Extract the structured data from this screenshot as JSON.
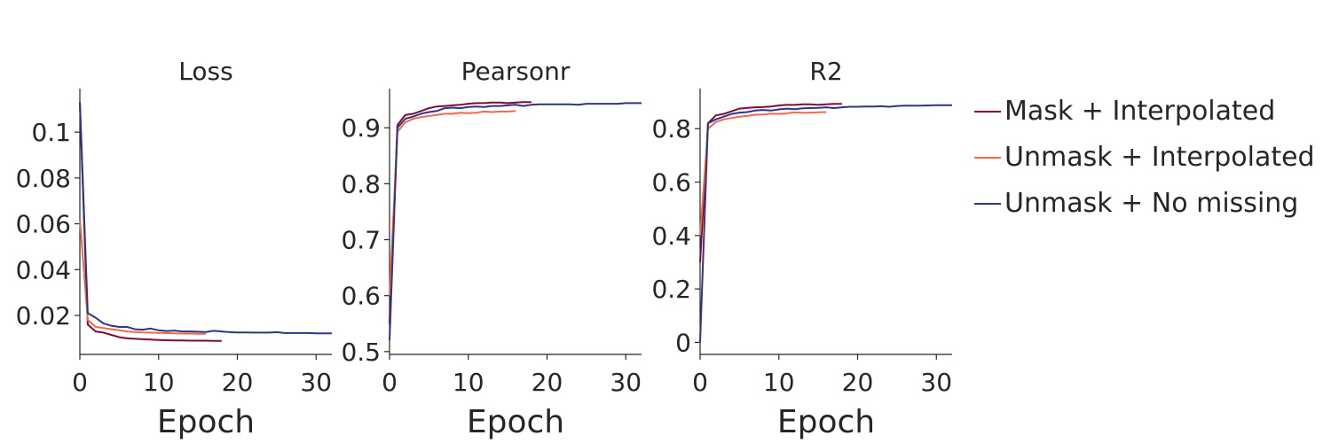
{
  "colors": {
    "Mask + Interpolated": "#7f0a35",
    "Unmask + Interpolated": "#ee6a45",
    "Unmask + No missing": "#2e3587",
    "axis": "#262626"
  },
  "legend": {
    "placement": "right",
    "items": [
      "Mask + Interpolated",
      "Unmask + Interpolated",
      "Unmask + No missing"
    ]
  },
  "chart_data": [
    {
      "type": "line",
      "title": "Loss",
      "xlabel": "Epoch",
      "ylabel": "",
      "xlim": [
        0,
        32
      ],
      "ylim": [
        0.003,
        0.119
      ],
      "xticks": [
        0,
        10,
        20,
        30
      ],
      "xtick_labels": [
        "0",
        "10",
        "20",
        "30"
      ],
      "yticks": [
        0.02,
        0.04,
        0.06,
        0.08,
        0.1
      ],
      "ytick_labels": [
        "0.02",
        "0.04",
        "0.06",
        "0.08",
        "0.1"
      ],
      "grid": false,
      "series": [
        {
          "name": "Mask + Interpolated",
          "x": [
            0,
            1,
            2,
            3,
            4,
            5,
            6,
            7,
            8,
            9,
            10,
            11,
            12,
            13,
            14,
            15,
            16,
            17,
            18
          ],
          "y": [
            0.113,
            0.016,
            0.013,
            0.0125,
            0.0115,
            0.0105,
            0.01,
            0.0098,
            0.0096,
            0.0095,
            0.0093,
            0.0092,
            0.0091,
            0.0091,
            0.009,
            0.009,
            0.009,
            0.0089,
            0.0089
          ]
        },
        {
          "name": "Unmask + Interpolated",
          "x": [
            0,
            1,
            2,
            3,
            4,
            5,
            6,
            7,
            8,
            9,
            10,
            11,
            12,
            13,
            14,
            15,
            16
          ],
          "y": [
            0.062,
            0.018,
            0.015,
            0.0145,
            0.014,
            0.0135,
            0.013,
            0.0128,
            0.0126,
            0.0125,
            0.0124,
            0.0123,
            0.0122,
            0.0121,
            0.0121,
            0.012,
            0.012
          ]
        },
        {
          "name": "Unmask + No missing",
          "x": [
            0,
            1,
            2,
            3,
            4,
            5,
            6,
            7,
            8,
            9,
            10,
            11,
            12,
            13,
            14,
            15,
            16,
            17,
            18,
            19,
            20,
            21,
            22,
            23,
            24,
            25,
            26,
            27,
            28,
            29,
            30,
            31,
            32
          ],
          "y": [
            0.113,
            0.021,
            0.019,
            0.0165,
            0.0155,
            0.015,
            0.015,
            0.014,
            0.0138,
            0.0143,
            0.0135,
            0.0132,
            0.0134,
            0.013,
            0.013,
            0.0129,
            0.0128,
            0.0133,
            0.013,
            0.0127,
            0.0126,
            0.0126,
            0.0125,
            0.0125,
            0.0125,
            0.0127,
            0.0123,
            0.0123,
            0.0123,
            0.0123,
            0.0122,
            0.0122,
            0.0122
          ]
        }
      ]
    },
    {
      "type": "line",
      "title": "Pearsonr",
      "xlabel": "Epoch",
      "ylabel": "",
      "xlim": [
        0,
        32
      ],
      "ylim": [
        0.495,
        0.97
      ],
      "xticks": [
        0,
        10,
        20,
        30
      ],
      "xtick_labels": [
        "0",
        "10",
        "20",
        "30"
      ],
      "yticks": [
        0.5,
        0.6,
        0.7,
        0.8,
        0.9
      ],
      "ytick_labels": [
        "0.5",
        "0.6",
        "0.7",
        "0.8",
        "0.9"
      ],
      "grid": false,
      "series": [
        {
          "name": "Mask + Interpolated",
          "x": [
            0,
            1,
            2,
            3,
            4,
            5,
            6,
            7,
            8,
            9,
            10,
            11,
            12,
            13,
            14,
            15,
            16,
            17,
            18
          ],
          "y": [
            0.55,
            0.905,
            0.923,
            0.925,
            0.93,
            0.935,
            0.938,
            0.939,
            0.94,
            0.941,
            0.943,
            0.944,
            0.944,
            0.945,
            0.945,
            0.944,
            0.945,
            0.946,
            0.946
          ]
        },
        {
          "name": "Unmask + Interpolated",
          "x": [
            0,
            1,
            2,
            3,
            4,
            5,
            6,
            7,
            8,
            9,
            10,
            11,
            12,
            13,
            14,
            15,
            16
          ],
          "y": [
            0.6,
            0.893,
            0.91,
            0.916,
            0.919,
            0.921,
            0.923,
            0.925,
            0.925,
            0.927,
            0.926,
            0.927,
            0.929,
            0.928,
            0.929,
            0.929,
            0.93
          ]
        },
        {
          "name": "Unmask + No missing",
          "x": [
            0,
            1,
            2,
            3,
            4,
            5,
            6,
            7,
            8,
            9,
            10,
            11,
            12,
            13,
            14,
            15,
            16,
            17,
            18,
            19,
            20,
            21,
            22,
            23,
            24,
            25,
            26,
            27,
            28,
            29,
            30,
            31,
            32
          ],
          "y": [
            0.52,
            0.9,
            0.916,
            0.92,
            0.925,
            0.928,
            0.93,
            0.935,
            0.936,
            0.935,
            0.937,
            0.938,
            0.937,
            0.939,
            0.939,
            0.94,
            0.941,
            0.939,
            0.941,
            0.942,
            0.942,
            0.942,
            0.942,
            0.942,
            0.941,
            0.943,
            0.943,
            0.943,
            0.943,
            0.943,
            0.944,
            0.944,
            0.944
          ]
        }
      ]
    },
    {
      "type": "line",
      "title": "R2",
      "xlabel": "Epoch",
      "ylabel": "",
      "xlim": [
        0,
        32
      ],
      "ylim": [
        -0.045,
        0.95
      ],
      "xticks": [
        0,
        10,
        20,
        30
      ],
      "xtick_labels": [
        "0",
        "10",
        "20",
        "30"
      ],
      "yticks": [
        0,
        0.2,
        0.4,
        0.6,
        0.8
      ],
      "ytick_labels": [
        "0",
        "0.2",
        "0.4",
        "0.6",
        "0.8"
      ],
      "grid": false,
      "series": [
        {
          "name": "Mask + Interpolated",
          "x": [
            0,
            1,
            2,
            3,
            4,
            5,
            6,
            7,
            8,
            9,
            10,
            11,
            12,
            13,
            14,
            15,
            16,
            17,
            18
          ],
          "y": [
            0.3,
            0.82,
            0.85,
            0.855,
            0.865,
            0.875,
            0.878,
            0.88,
            0.881,
            0.883,
            0.887,
            0.889,
            0.889,
            0.891,
            0.891,
            0.889,
            0.891,
            0.893,
            0.893
          ]
        },
        {
          "name": "Unmask + Interpolated",
          "x": [
            0,
            1,
            2,
            3,
            4,
            5,
            6,
            7,
            8,
            9,
            10,
            11,
            12,
            13,
            14,
            15,
            16
          ],
          "y": [
            0.4,
            0.8,
            0.825,
            0.835,
            0.84,
            0.845,
            0.848,
            0.852,
            0.853,
            0.856,
            0.855,
            0.857,
            0.861,
            0.859,
            0.86,
            0.861,
            0.862
          ]
        },
        {
          "name": "Unmask + No missing",
          "x": [
            0,
            1,
            2,
            3,
            4,
            5,
            6,
            7,
            8,
            9,
            10,
            11,
            12,
            13,
            14,
            15,
            16,
            17,
            18,
            19,
            20,
            21,
            22,
            23,
            24,
            25,
            26,
            27,
            28,
            29,
            30,
            31,
            32
          ],
          "y": [
            0.0,
            0.82,
            0.835,
            0.845,
            0.855,
            0.86,
            0.862,
            0.868,
            0.87,
            0.868,
            0.872,
            0.875,
            0.873,
            0.876,
            0.877,
            0.878,
            0.88,
            0.877,
            0.88,
            0.882,
            0.882,
            0.883,
            0.883,
            0.884,
            0.882,
            0.885,
            0.886,
            0.886,
            0.886,
            0.887,
            0.888,
            0.888,
            0.888
          ]
        }
      ]
    }
  ]
}
